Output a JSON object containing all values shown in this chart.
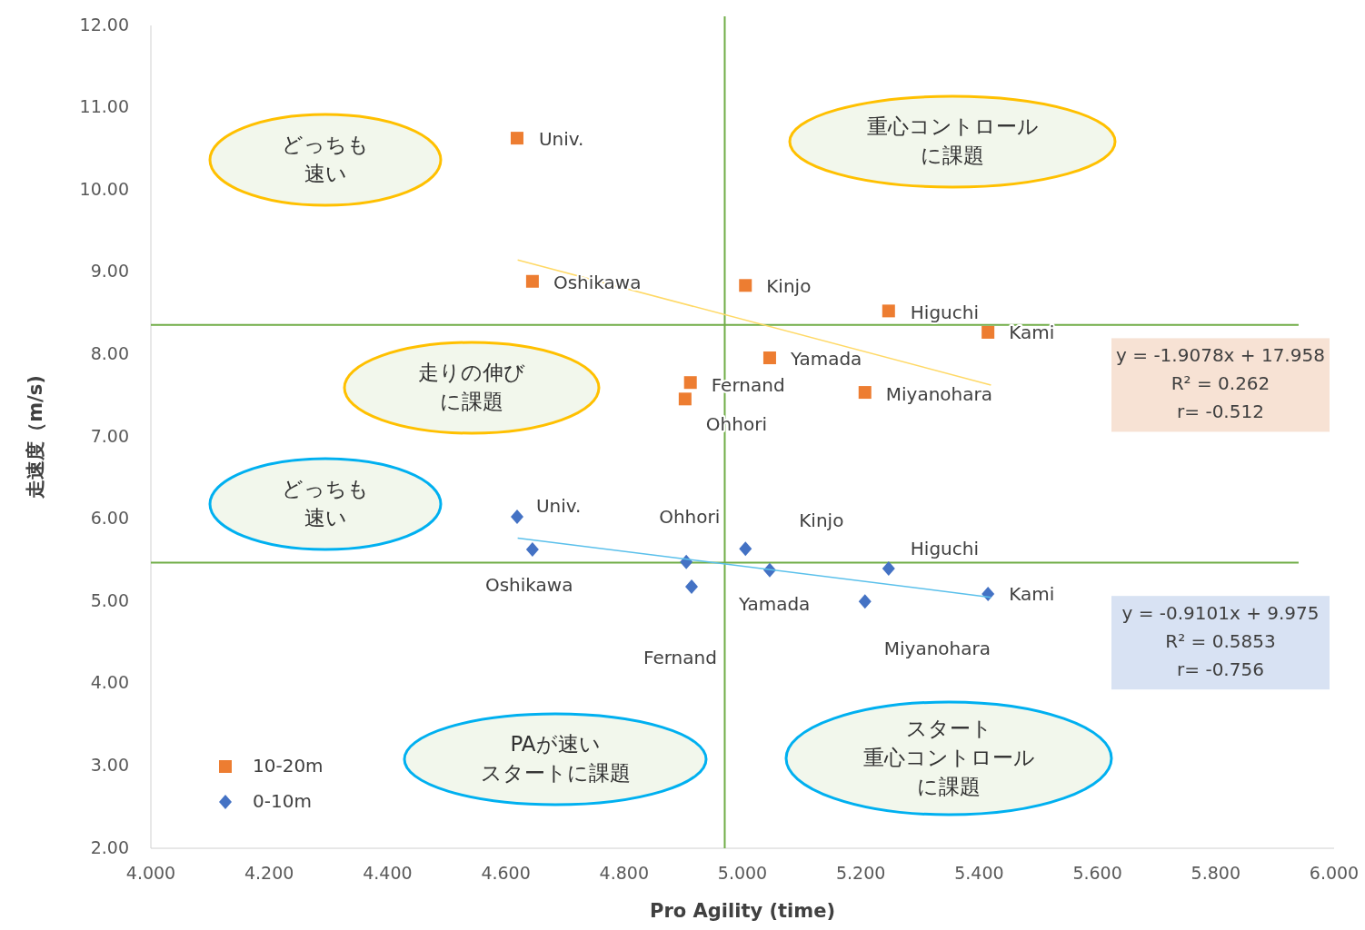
{
  "chart_data": {
    "type": "scatter",
    "xlabel": "Pro Agility (time)",
    "ylabel": "走速度（m/s)",
    "xlim": [
      4,
      6
    ],
    "ylim": [
      2,
      12
    ],
    "xticks": [
      {
        "value": 4,
        "label": "4.000"
      },
      {
        "value": 4.2,
        "label": "4.200"
      },
      {
        "value": 4.4,
        "label": "4.400"
      },
      {
        "value": 4.6,
        "label": "4.600"
      },
      {
        "value": 4.8,
        "label": "4.800"
      },
      {
        "value": 5,
        "label": "5.000"
      },
      {
        "value": 5.2,
        "label": "5.200"
      },
      {
        "value": 5.4,
        "label": "5.400"
      },
      {
        "value": 5.6,
        "label": "5.600"
      },
      {
        "value": 5.8,
        "label": "5.800"
      },
      {
        "value": 6,
        "label": "6.000"
      }
    ],
    "yticks": [
      {
        "value": 2,
        "label": "2.00"
      },
      {
        "value": 3,
        "label": "3.00"
      },
      {
        "value": 4,
        "label": "4.00"
      },
      {
        "value": 5,
        "label": "5.00"
      },
      {
        "value": 6,
        "label": "6.00"
      },
      {
        "value": 7,
        "label": "7.00"
      },
      {
        "value": 8,
        "label": "8.00"
      },
      {
        "value": 9,
        "label": "9.00"
      },
      {
        "value": 10,
        "label": "10.00"
      },
      {
        "value": 11,
        "label": "11.00"
      },
      {
        "value": 12,
        "label": "12.00"
      }
    ],
    "grid": false,
    "legend": "bottom left",
    "series": [
      {
        "name": "10-20m",
        "color": "#ed7d31",
        "marker": "square",
        "x": [
          4.619,
          4.645,
          5.005,
          5.247,
          5.415,
          5.046,
          4.912,
          5.207,
          4.903
        ],
        "values": [
          10.63,
          8.89,
          8.84,
          8.53,
          8.27,
          7.96,
          7.66,
          7.54,
          7.46
        ]
      },
      {
        "name": "0-10m",
        "color": "#4472c4",
        "marker": "diamond",
        "x": [
          4.619,
          4.645,
          4.905,
          4.914,
          5.005,
          5.046,
          5.207,
          5.247,
          5.415
        ],
        "values": [
          6.03,
          5.63,
          5.48,
          5.18,
          5.64,
          5.38,
          5.0,
          5.4,
          5.09
        ]
      },
      {
        "type": "line",
        "color": "#ffd966",
        "x": [
          4.62,
          5.42
        ],
        "values": [
          9.15,
          7.63
        ]
      },
      {
        "type": "line",
        "color": "#5bc0eb",
        "x": [
          4.62,
          5.42
        ],
        "values": [
          5.77,
          5.05
        ]
      }
    ],
    "ref_lines": [
      {
        "axis": "x",
        "value": 4.97,
        "color": "#70ad47"
      },
      {
        "axis": "y",
        "value": 8.36,
        "color": "#70ad47"
      },
      {
        "axis": "y",
        "value": 5.47,
        "color": "#70ad47"
      }
    ],
    "annotations": [
      "どっちも速い",
      "重心コントロールに課題",
      "走りの伸びに課題",
      "どっちも速い",
      "PAが速いスタートに課題",
      "スタート重心コントロールに課題",
      "Univ.",
      "Oshikawa",
      "Kinjo",
      "Higuchi",
      "Kami",
      "Yamada",
      "Fernand",
      "Miyanohara",
      "Ohhori",
      "Univ.",
      "Oshikawa",
      "Ohhori",
      "Fernand",
      "Kinjo",
      "Yamada",
      "Miyanohara",
      "Higuchi",
      "Kami",
      "y = -1.9078x + 17.958",
      "R² = 0.262",
      "r= -0.512",
      "y = -0.9101x + 9.975",
      "R² = 0.5853",
      "r= -0.756"
    ]
  }
}
